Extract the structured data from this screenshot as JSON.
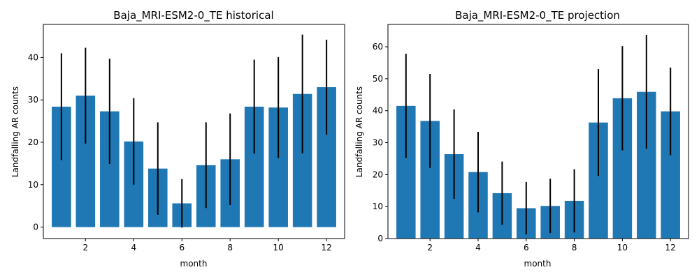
{
  "chart_data": [
    {
      "type": "bar",
      "title": "Baja_MRI-ESM2-0_TE historical",
      "xlabel": "month",
      "ylabel": "Landfalling AR counts",
      "x": [
        1,
        2,
        3,
        4,
        5,
        6,
        7,
        8,
        9,
        10,
        11,
        12
      ],
      "values": [
        28.4,
        31.0,
        27.3,
        20.2,
        13.8,
        5.6,
        14.6,
        16.0,
        28.4,
        28.2,
        31.4,
        33.0
      ],
      "errors": [
        12.6,
        11.3,
        12.4,
        10.2,
        10.9,
        5.7,
        10.1,
        10.8,
        11.1,
        11.9,
        14.0,
        11.2
      ],
      "xlim": [
        0.25,
        12.75
      ],
      "ylim": [
        -2.7,
        47.8
      ],
      "xticks": [
        2,
        4,
        6,
        8,
        10,
        12
      ],
      "yticks": [
        0,
        10,
        20,
        30,
        40
      ],
      "color": "#1f77b4",
      "error_color": "#000000"
    },
    {
      "type": "bar",
      "title": "Baja_MRI-ESM2-0_TE projection",
      "xlabel": "month",
      "ylabel": "Landfalling AR counts",
      "x": [
        1,
        2,
        3,
        4,
        5,
        6,
        7,
        8,
        9,
        10,
        11,
        12
      ],
      "values": [
        41.5,
        36.8,
        26.4,
        20.8,
        14.2,
        9.5,
        10.2,
        11.8,
        36.3,
        43.9,
        45.9,
        39.8
      ],
      "errors": [
        16.3,
        14.7,
        14.0,
        12.6,
        9.9,
        8.2,
        8.5,
        9.9,
        16.7,
        16.3,
        17.8,
        13.7
      ],
      "xlim": [
        0.25,
        12.75
      ],
      "ylim": [
        0,
        67.0
      ],
      "xticks": [
        2,
        4,
        6,
        8,
        10,
        12
      ],
      "yticks": [
        0,
        10,
        20,
        30,
        40,
        50,
        60
      ],
      "color": "#1f77b4",
      "error_color": "#000000"
    }
  ]
}
